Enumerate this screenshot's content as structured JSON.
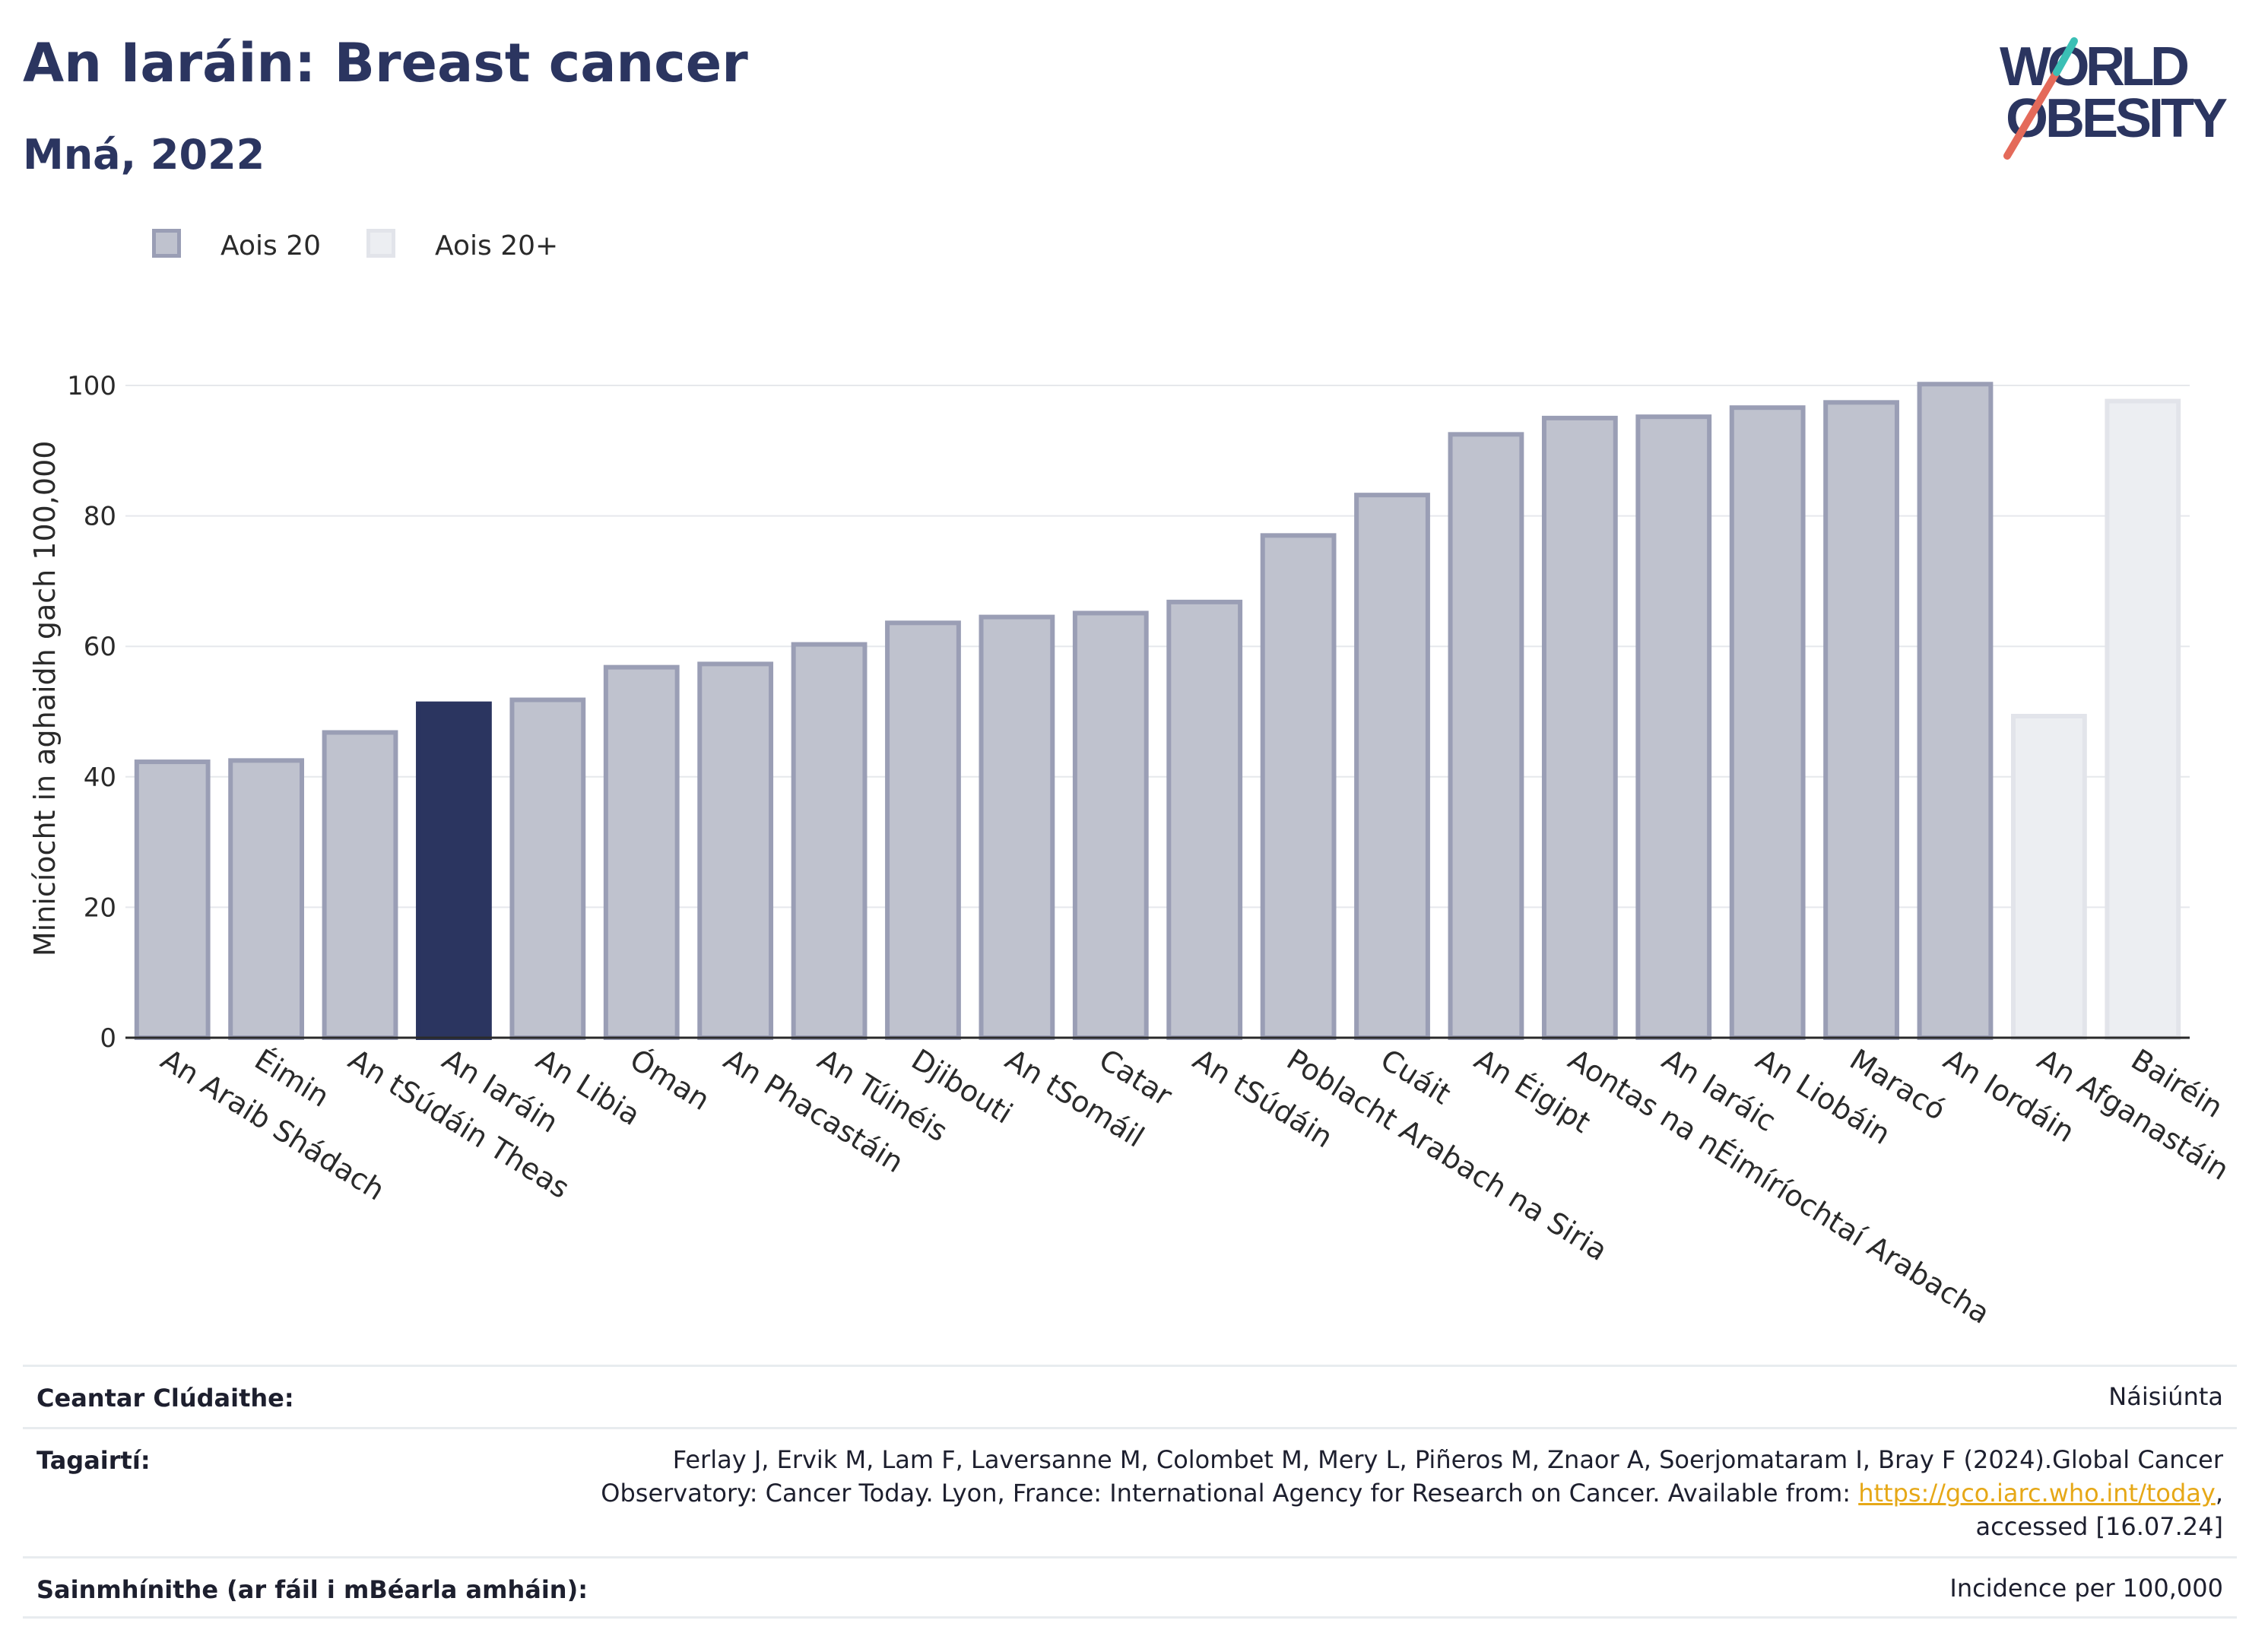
{
  "header": {
    "title": "An Iaráin: Breast cancer",
    "subtitle": "Mná, 2022"
  },
  "logo": {
    "line1": "WORLD",
    "line2": "OBESITY",
    "text_color": "#2b3560",
    "slash_colors": [
      "#e46a5a",
      "#3bbfb5"
    ]
  },
  "legend": {
    "items": [
      {
        "label": "Aois 20",
        "color": "#bfc2ce",
        "border": "#9a9eb5"
      },
      {
        "label": "Aois 20+",
        "color": "#eceef2",
        "border": "#e0e2e8"
      }
    ]
  },
  "chart_data": {
    "type": "bar",
    "ylabel": "Minicíocht in aghaidh gach 100,000",
    "ylim": [
      0,
      105
    ],
    "yticks": [
      0,
      20,
      40,
      60,
      80,
      100
    ],
    "grid": true,
    "legend_position": "top-left",
    "highlight": "An Iaráin",
    "categories": [
      "An Araib Shádach",
      "Éimin",
      "An tSúdáin Theas",
      "An Iaráin",
      "An Libia",
      "Óman",
      "An Phacastáin",
      "An Túinéis",
      "Djibouti",
      "An tSomáil",
      "Catar",
      "An tSúdáin",
      "Poblacht Arabach na Siria",
      "Cuáit",
      "An Éigipt",
      "Aontas na nÉimíríochtaí Arabacha",
      "An Iaráic",
      "An Liobáin",
      "Maracó",
      "An Iordáin",
      "An Afganastáin",
      "Bairéin"
    ],
    "series": [
      {
        "name": "Aois 20",
        "values": [
          42.3,
          42.5,
          46.8,
          51.2,
          51.8,
          56.8,
          57.3,
          60.3,
          63.6,
          64.5,
          65.1,
          66.8,
          77.0,
          83.2,
          92.5,
          95.0,
          95.2,
          96.6,
          97.4,
          100.2,
          null,
          null
        ]
      },
      {
        "name": "Aois 20+",
        "values": [
          null,
          null,
          null,
          null,
          null,
          null,
          null,
          null,
          null,
          null,
          null,
          null,
          null,
          null,
          null,
          null,
          null,
          null,
          null,
          null,
          49.3,
          97.6
        ]
      }
    ],
    "colors": {
      "age20": "#bfc2ce",
      "age20_border": "#9a9eb5",
      "highlight": "#2b3560",
      "age20plus": "#eceef2",
      "age20plus_border": "#e2e4ea"
    }
  },
  "footer": {
    "rows": [
      {
        "key": "Ceantar Clúdaithe:",
        "value": "Náisiúnta"
      },
      {
        "key": "Tagairtí:",
        "line1": "Ferlay J, Ervik M, Lam F, Laversanne M, Colombet M, Mery L, Piñeros M, Znaor A, Soerjomataram I, Bray F (2024).Global Cancer",
        "line2_pre": "Observatory: Cancer Today. Lyon, France: International Agency for Research on Cancer. Available from: ",
        "link": "https://gco.iarc.who.int/today",
        "line2_post": ",",
        "line3": "accessed [16.07.24]"
      },
      {
        "key": "Sainmhínithe (ar fáil i mBéarla amháin):",
        "value": "Incidence per 100,000"
      }
    ]
  }
}
